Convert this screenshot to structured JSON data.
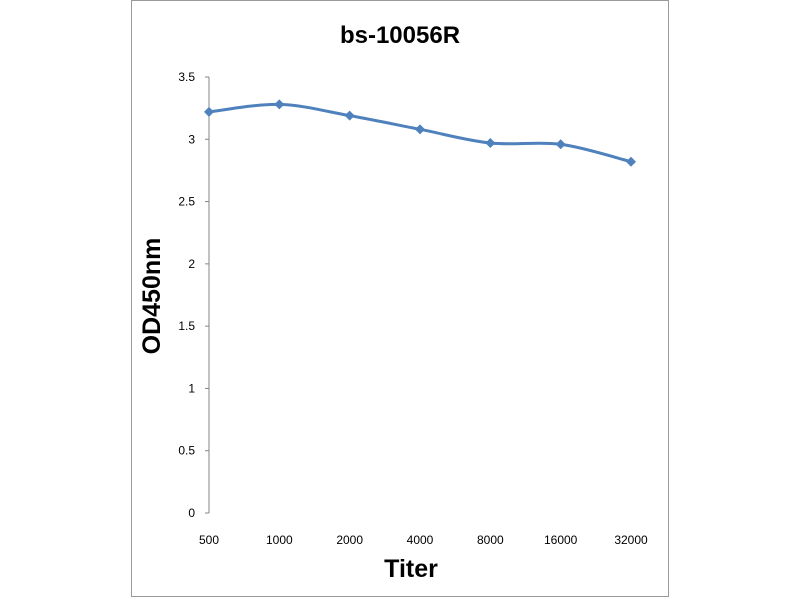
{
  "chart_data": {
    "type": "line",
    "title": "bs-10056R",
    "xlabel": "Titer",
    "ylabel": "OD450nm",
    "categories": [
      "500",
      "1000",
      "2000",
      "4000",
      "8000",
      "16000",
      "32000"
    ],
    "series": [
      {
        "values": [
          3.22,
          3.28,
          3.19,
          3.08,
          2.97,
          2.96,
          2.82
        ],
        "color": "#4f81bd",
        "marker": "diamond"
      }
    ],
    "ylim": [
      0,
      3.5
    ],
    "yticks": [
      "0",
      "0.5",
      "1",
      "1.5",
      "2",
      "2.5",
      "3",
      "3.5"
    ],
    "grid": false,
    "legend": "none"
  }
}
